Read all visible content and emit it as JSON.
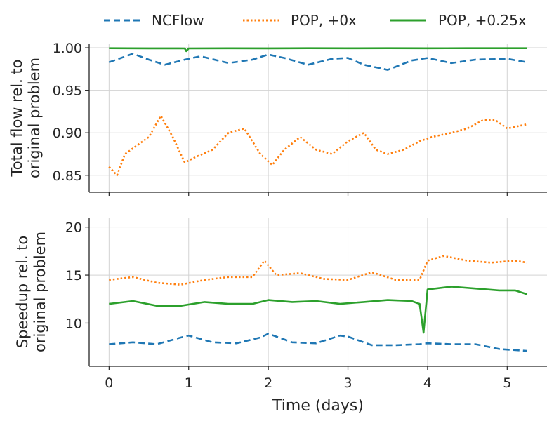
{
  "legend": [
    {
      "name": "NCFlow",
      "color": "#1f77b4",
      "dash": "dashed"
    },
    {
      "name": "POP, +0x",
      "color": "#ff7f0e",
      "dash": "dotted"
    },
    {
      "name": "POP, +0.25x",
      "color": "#2ca02c",
      "dash": "solid"
    }
  ],
  "chart_data": [
    {
      "type": "line",
      "ylabel": [
        "Total flow rel. to",
        "original problem"
      ],
      "xlabel": "",
      "xlim": [
        -0.25,
        5.5
      ],
      "ylim": [
        0.83,
        1.005
      ],
      "xticks": [
        0,
        1,
        2,
        3,
        4,
        5
      ],
      "yticks": [
        0.85,
        0.9,
        0.95,
        1.0
      ],
      "ytick_labels": [
        "0.85",
        "0.90",
        "0.95",
        "1.00"
      ],
      "grid": true,
      "series": [
        {
          "name": "NCFlow",
          "color": "#1f77b4",
          "style": "dashed",
          "x": [
            0,
            0.15,
            0.3,
            0.5,
            0.7,
            0.95,
            1.15,
            1.5,
            1.8,
            2.0,
            2.2,
            2.5,
            2.8,
            3.0,
            3.2,
            3.5,
            3.8,
            4.0,
            4.3,
            4.6,
            5.0,
            5.25
          ],
          "y": [
            0.983,
            0.988,
            0.993,
            0.986,
            0.98,
            0.986,
            0.99,
            0.982,
            0.986,
            0.992,
            0.988,
            0.98,
            0.987,
            0.988,
            0.98,
            0.974,
            0.985,
            0.988,
            0.982,
            0.986,
            0.987,
            0.983
          ]
        },
        {
          "name": "POP, +0x",
          "color": "#ff7f0e",
          "style": "dotted",
          "x": [
            0,
            0.1,
            0.2,
            0.35,
            0.5,
            0.65,
            0.8,
            0.95,
            1.1,
            1.3,
            1.5,
            1.7,
            1.9,
            2.05,
            2.2,
            2.4,
            2.6,
            2.8,
            3.0,
            3.2,
            3.35,
            3.5,
            3.7,
            3.9,
            4.05,
            4.3,
            4.5,
            4.7,
            4.85,
            5.0,
            5.25
          ],
          "y": [
            0.86,
            0.85,
            0.875,
            0.885,
            0.895,
            0.92,
            0.895,
            0.865,
            0.872,
            0.88,
            0.9,
            0.905,
            0.875,
            0.862,
            0.88,
            0.895,
            0.88,
            0.875,
            0.89,
            0.9,
            0.88,
            0.875,
            0.88,
            0.89,
            0.895,
            0.9,
            0.905,
            0.915,
            0.915,
            0.905,
            0.91
          ]
        },
        {
          "name": "POP, +0.25x",
          "color": "#2ca02c",
          "style": "solid",
          "x": [
            0,
            0.5,
            0.95,
            0.97,
            1.0,
            1.5,
            2.0,
            2.5,
            3.0,
            3.5,
            4.0,
            4.5,
            5.0,
            5.25
          ],
          "y": [
            0.9995,
            0.9993,
            0.9992,
            0.996,
            0.9992,
            0.9994,
            0.9993,
            0.9995,
            0.9994,
            0.9995,
            0.9994,
            0.9995,
            0.9995,
            0.9995
          ]
        }
      ]
    },
    {
      "type": "line",
      "ylabel": [
        "Speedup rel. to",
        "original problem"
      ],
      "xlabel": "Time (days)",
      "xlim": [
        -0.25,
        5.5
      ],
      "ylim": [
        5.5,
        21.0
      ],
      "xticks": [
        0,
        1,
        2,
        3,
        4,
        5
      ],
      "xtick_labels": [
        "0",
        "1",
        "2",
        "3",
        "4",
        "5"
      ],
      "yticks": [
        10,
        15,
        20
      ],
      "ytick_labels": [
        "10",
        "15",
        "20"
      ],
      "grid": true,
      "series": [
        {
          "name": "NCFlow",
          "color": "#1f77b4",
          "style": "dashed",
          "x": [
            0,
            0.3,
            0.6,
            0.9,
            1.0,
            1.3,
            1.6,
            1.9,
            2.0,
            2.3,
            2.6,
            2.9,
            3.0,
            3.3,
            3.6,
            3.9,
            4.0,
            4.3,
            4.6,
            4.9,
            5.25
          ],
          "y": [
            7.8,
            8.0,
            7.8,
            8.5,
            8.7,
            8.0,
            7.9,
            8.5,
            8.9,
            8.0,
            7.9,
            8.7,
            8.6,
            7.7,
            7.7,
            7.8,
            7.9,
            7.8,
            7.8,
            7.3,
            7.1
          ]
        },
        {
          "name": "POP, +0x",
          "color": "#ff7f0e",
          "style": "dotted",
          "x": [
            0,
            0.3,
            0.6,
            0.9,
            1.2,
            1.5,
            1.8,
            1.95,
            2.1,
            2.4,
            2.7,
            3.0,
            3.3,
            3.6,
            3.9,
            4.0,
            4.2,
            4.5,
            4.8,
            5.1,
            5.25
          ],
          "y": [
            14.5,
            14.8,
            14.2,
            14.0,
            14.5,
            14.8,
            14.8,
            16.5,
            15.0,
            15.2,
            14.6,
            14.5,
            15.3,
            14.5,
            14.5,
            16.5,
            17.0,
            16.5,
            16.3,
            16.5,
            16.3
          ]
        },
        {
          "name": "POP, +0.25x",
          "color": "#2ca02c",
          "style": "solid",
          "x": [
            0,
            0.3,
            0.6,
            0.9,
            1.2,
            1.5,
            1.8,
            2.0,
            2.3,
            2.6,
            2.9,
            3.2,
            3.5,
            3.8,
            3.9,
            3.95,
            4.0,
            4.3,
            4.6,
            4.9,
            5.1,
            5.25
          ],
          "y": [
            12.0,
            12.3,
            11.8,
            11.8,
            12.2,
            12.0,
            12.0,
            12.4,
            12.2,
            12.3,
            12.0,
            12.2,
            12.4,
            12.3,
            12.0,
            9.0,
            13.5,
            13.8,
            13.6,
            13.4,
            13.4,
            13.0
          ]
        }
      ]
    }
  ]
}
